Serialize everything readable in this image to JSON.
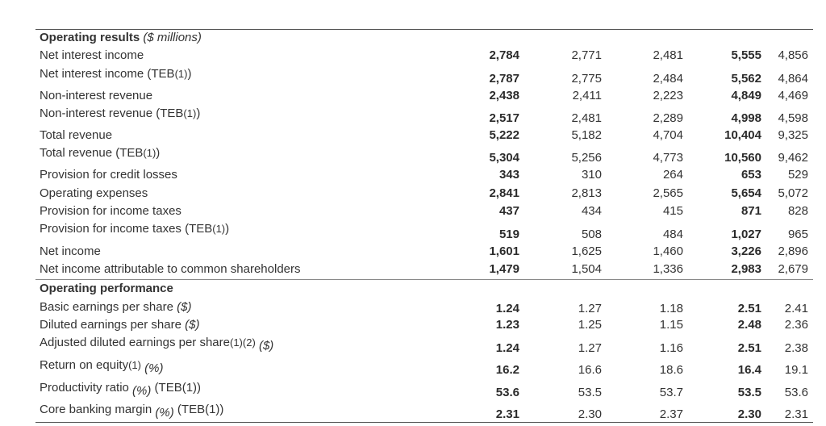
{
  "sections": [
    {
      "title": "Operating results",
      "unit": "($ millions)"
    },
    {
      "title": "Operating performance",
      "unit": ""
    }
  ],
  "rows": [
    {
      "label": "Net interest income",
      "sup": "",
      "unit": "",
      "suffix": "",
      "values": [
        "2,784",
        "2,771",
        "2,481",
        "5,555",
        "4,856"
      ]
    },
    {
      "label": "Net interest income (TEB",
      "sup": "(1)",
      "unit": "",
      "suffix": ")",
      "values": [
        "2,787",
        "2,775",
        "2,484",
        "5,562",
        "4,864"
      ]
    },
    {
      "label": "Non-interest revenue",
      "sup": "",
      "unit": "",
      "suffix": "",
      "values": [
        "2,438",
        "2,411",
        "2,223",
        "4,849",
        "4,469"
      ]
    },
    {
      "label": "Non-interest revenue (TEB",
      "sup": "(1)",
      "unit": "",
      "suffix": ")",
      "values": [
        "2,517",
        "2,481",
        "2,289",
        "4,998",
        "4,598"
      ]
    },
    {
      "label": "Total revenue",
      "sup": "",
      "unit": "",
      "suffix": "",
      "values": [
        "5,222",
        "5,182",
        "4,704",
        "10,404",
        "9,325"
      ]
    },
    {
      "label": "Total revenue (TEB",
      "sup": "(1)",
      "unit": "",
      "suffix": ")",
      "values": [
        "5,304",
        "5,256",
        "4,773",
        "10,560",
        "9,462"
      ]
    },
    {
      "label": "Provision for credit losses",
      "sup": "",
      "unit": "",
      "suffix": "",
      "values": [
        "343",
        "310",
        "264",
        "653",
        "529"
      ]
    },
    {
      "label": "Operating expenses",
      "sup": "",
      "unit": "",
      "suffix": "",
      "values": [
        "2,841",
        "2,813",
        "2,565",
        "5,654",
        "5,072"
      ]
    },
    {
      "label": "Provision for income taxes",
      "sup": "",
      "unit": "",
      "suffix": "",
      "values": [
        "437",
        "434",
        "415",
        "871",
        "828"
      ]
    },
    {
      "label": "Provision for income taxes (TEB",
      "sup": "(1)",
      "unit": "",
      "suffix": ")",
      "values": [
        "519",
        "508",
        "484",
        "1,027",
        "965"
      ]
    },
    {
      "label": "Net income",
      "sup": "",
      "unit": "",
      "suffix": "",
      "values": [
        "1,601",
        "1,625",
        "1,460",
        "3,226",
        "2,896"
      ]
    },
    {
      "label": "Net income attributable to common shareholders",
      "sup": "",
      "unit": "",
      "suffix": "",
      "values": [
        "1,479",
        "1,504",
        "1,336",
        "2,983",
        "2,679"
      ]
    },
    {
      "label": "Basic earnings per share",
      "sup": "",
      "unit": "($)",
      "suffix": "",
      "values": [
        "1.24",
        "1.27",
        "1.18",
        "2.51",
        "2.41"
      ]
    },
    {
      "label": "Diluted earnings per share",
      "sup": "",
      "unit": "($)",
      "suffix": "",
      "values": [
        "1.23",
        "1.25",
        "1.15",
        "2.48",
        "2.36"
      ]
    },
    {
      "label": "Adjusted diluted earnings per share",
      "sup": "(1)(2)",
      "unit": "($)",
      "suffix": "",
      "values": [
        "1.24",
        "1.27",
        "1.16",
        "2.51",
        "2.38"
      ]
    },
    {
      "label": "Return on equity",
      "sup": "(1)",
      "unit": "(%)",
      "suffix": "",
      "values": [
        "16.2",
        "16.6",
        "18.6",
        "16.4",
        "19.1"
      ]
    },
    {
      "label": "Productivity ratio",
      "sup": "",
      "unit": "(%)",
      "suffix": "(TEB(1))",
      "values": [
        "53.6",
        "53.5",
        "53.7",
        "53.5",
        "53.6"
      ]
    },
    {
      "label": "Core banking margin",
      "sup": "",
      "unit": "(%)",
      "suffix": "(TEB(1))",
      "values": [
        "2.31",
        "2.30",
        "2.37",
        "2.30",
        "2.31"
      ]
    }
  ]
}
